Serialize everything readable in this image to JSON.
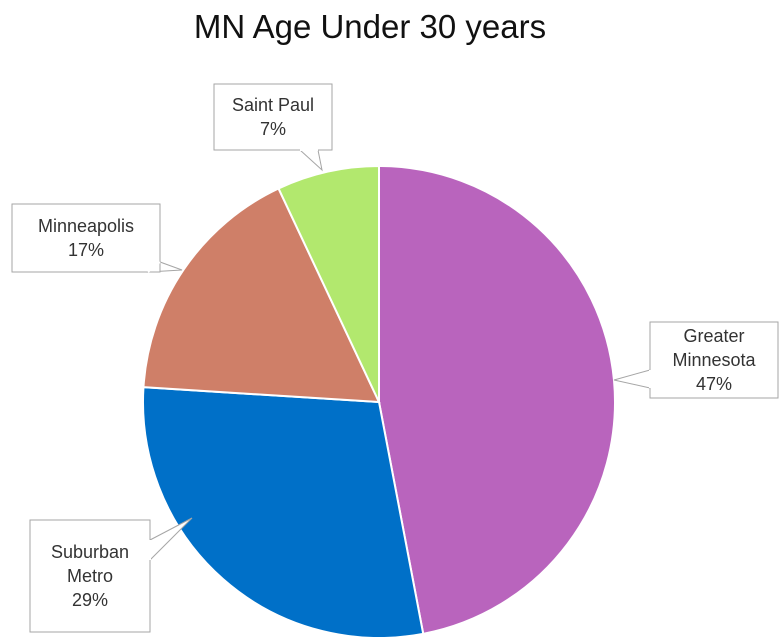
{
  "chart_data": {
    "type": "pie",
    "title": "MN Age Under 30 years",
    "categories": [
      "Greater Minnesota",
      "Suburban Metro",
      "Minneapolis",
      "Saint Paul"
    ],
    "values": [
      47,
      29,
      17,
      7
    ],
    "value_labels": [
      "47%",
      "29%",
      "17%",
      "7%"
    ],
    "colors": [
      "#b964bd",
      "#0070c8",
      "#cf7f68",
      "#b2e86e"
    ]
  }
}
